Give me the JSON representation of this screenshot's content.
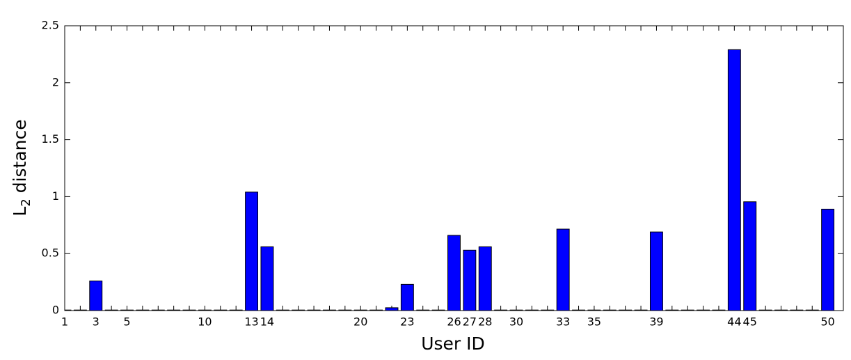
{
  "chart_data": {
    "type": "bar",
    "xlabel": "User ID",
    "ylabel": [
      "L",
      "2",
      " distance"
    ],
    "categories": [
      "1",
      null,
      "3",
      null,
      "5",
      null,
      null,
      null,
      null,
      "10",
      null,
      null,
      "13",
      "14",
      null,
      null,
      null,
      null,
      null,
      "20",
      null,
      null,
      "23",
      null,
      null,
      "26",
      "27",
      "28",
      null,
      "30",
      null,
      null,
      "33",
      null,
      "35",
      null,
      null,
      null,
      "39",
      null,
      null,
      null,
      null,
      "44",
      "45",
      null,
      null,
      null,
      null,
      "50"
    ],
    "values": [
      0.005,
      0.005,
      0.26,
      0.005,
      0.005,
      0.005,
      0.005,
      0.005,
      0.005,
      0.005,
      0.005,
      0.005,
      1.04,
      0.56,
      0.005,
      0.005,
      0.005,
      0.005,
      0.005,
      0.005,
      0.005,
      0.025,
      0.23,
      0.005,
      0.005,
      0.66,
      0.53,
      0.56,
      0.005,
      0.005,
      0.005,
      0.005,
      0.715,
      0.005,
      0.005,
      0.005,
      0.005,
      0.005,
      0.69,
      0.005,
      0.005,
      0.005,
      0.005,
      2.29,
      0.955,
      0.005,
      0.005,
      0.005,
      0.005,
      0.89
    ],
    "color": "#0000ff",
    "ylim": [
      0,
      2.5
    ],
    "yticks": [
      0,
      0.5,
      1,
      1.5,
      2,
      2.5
    ]
  }
}
